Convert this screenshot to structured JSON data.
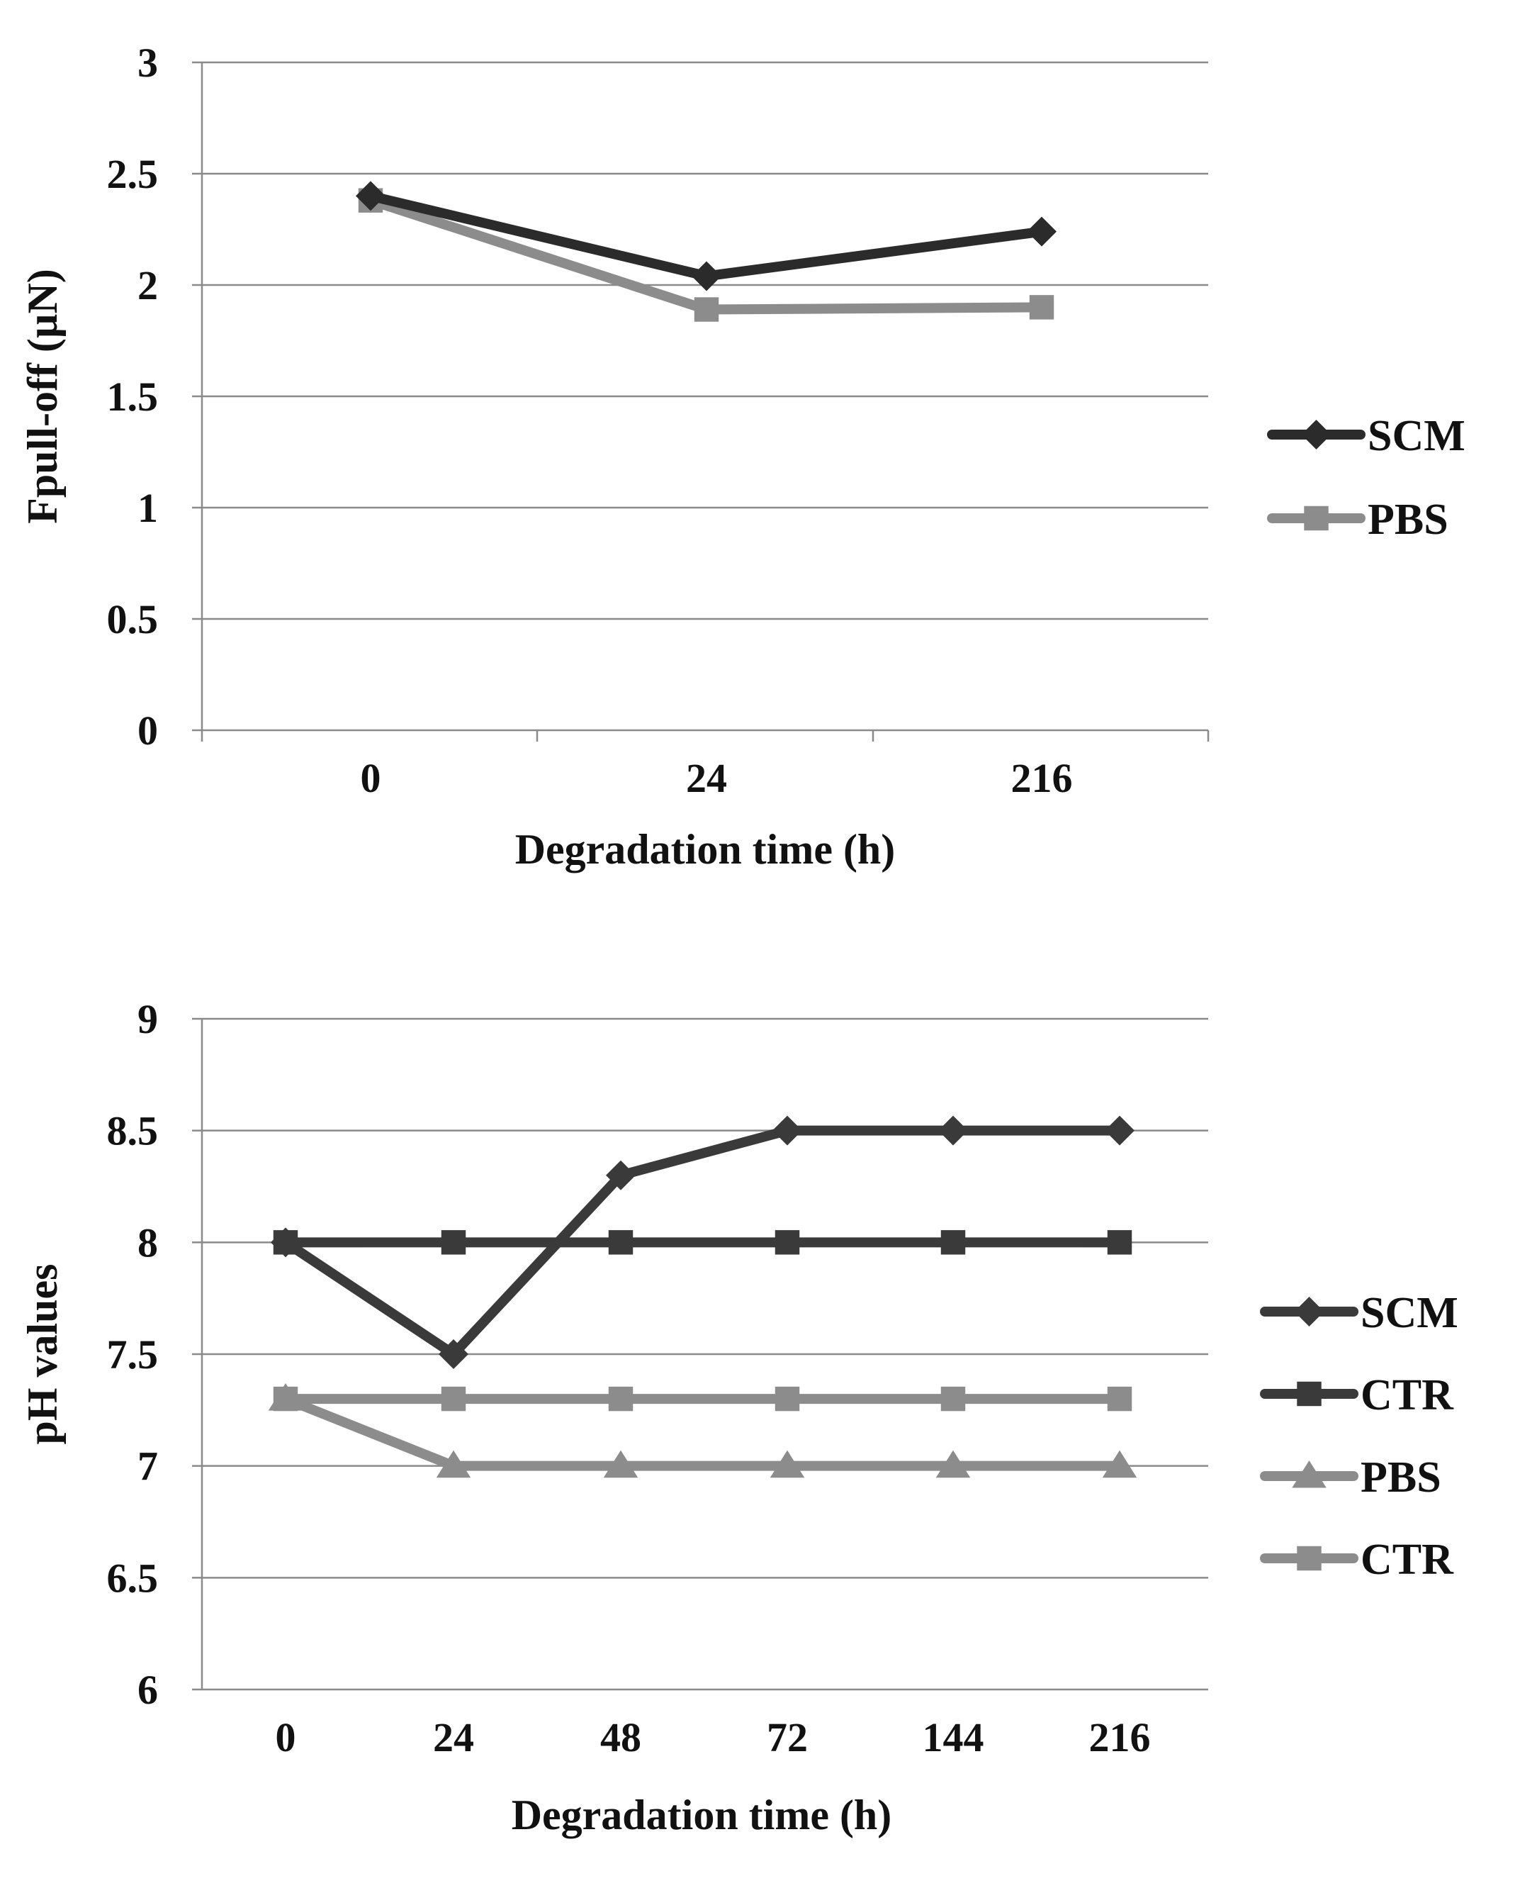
{
  "chart_data": [
    {
      "type": "line",
      "title": "",
      "xlabel": "Degradation time (h)",
      "ylabel": "Fpull-off  (µN)",
      "categories": [
        "0",
        "24",
        "216"
      ],
      "ylim": [
        0,
        3
      ],
      "yticks": [
        "0",
        "0.5",
        "1",
        "1.5",
        "2",
        "2.5",
        "3"
      ],
      "grid": true,
      "legend_position": "right",
      "series": [
        {
          "name": "SCM",
          "values": [
            2.4,
            2.04,
            2.24
          ],
          "marker": "diamond",
          "color": "#2b2b2b"
        },
        {
          "name": "PBS",
          "values": [
            2.38,
            1.89,
            1.9
          ],
          "marker": "square",
          "color": "#8c8c8c"
        }
      ]
    },
    {
      "type": "line",
      "title": "",
      "xlabel": "Degradation time (h)",
      "ylabel": "pH values",
      "categories": [
        "0",
        "24",
        "48",
        "72",
        "144",
        "216"
      ],
      "ylim": [
        6,
        9
      ],
      "yticks": [
        "6",
        "6.5",
        "7",
        "7.5",
        "8",
        "8.5",
        "9"
      ],
      "grid": true,
      "legend_position": "right",
      "series": [
        {
          "name": "SCM",
          "values": [
            8.0,
            7.5,
            8.3,
            8.5,
            8.5,
            8.5
          ],
          "marker": "diamond",
          "color": "#3a3a3a"
        },
        {
          "name": "CTR",
          "values": [
            8.0,
            8.0,
            8.0,
            8.0,
            8.0,
            8.0
          ],
          "marker": "square",
          "color": "#3a3a3a"
        },
        {
          "name": "PBS",
          "values": [
            7.3,
            7.0,
            7.0,
            7.0,
            7.0,
            7.0
          ],
          "marker": "triangle",
          "color": "#8c8c8c"
        },
        {
          "name": "CTR",
          "values": [
            7.3,
            7.3,
            7.3,
            7.3,
            7.3,
            7.3
          ],
          "marker": "square",
          "color": "#8c8c8c"
        }
      ]
    }
  ]
}
